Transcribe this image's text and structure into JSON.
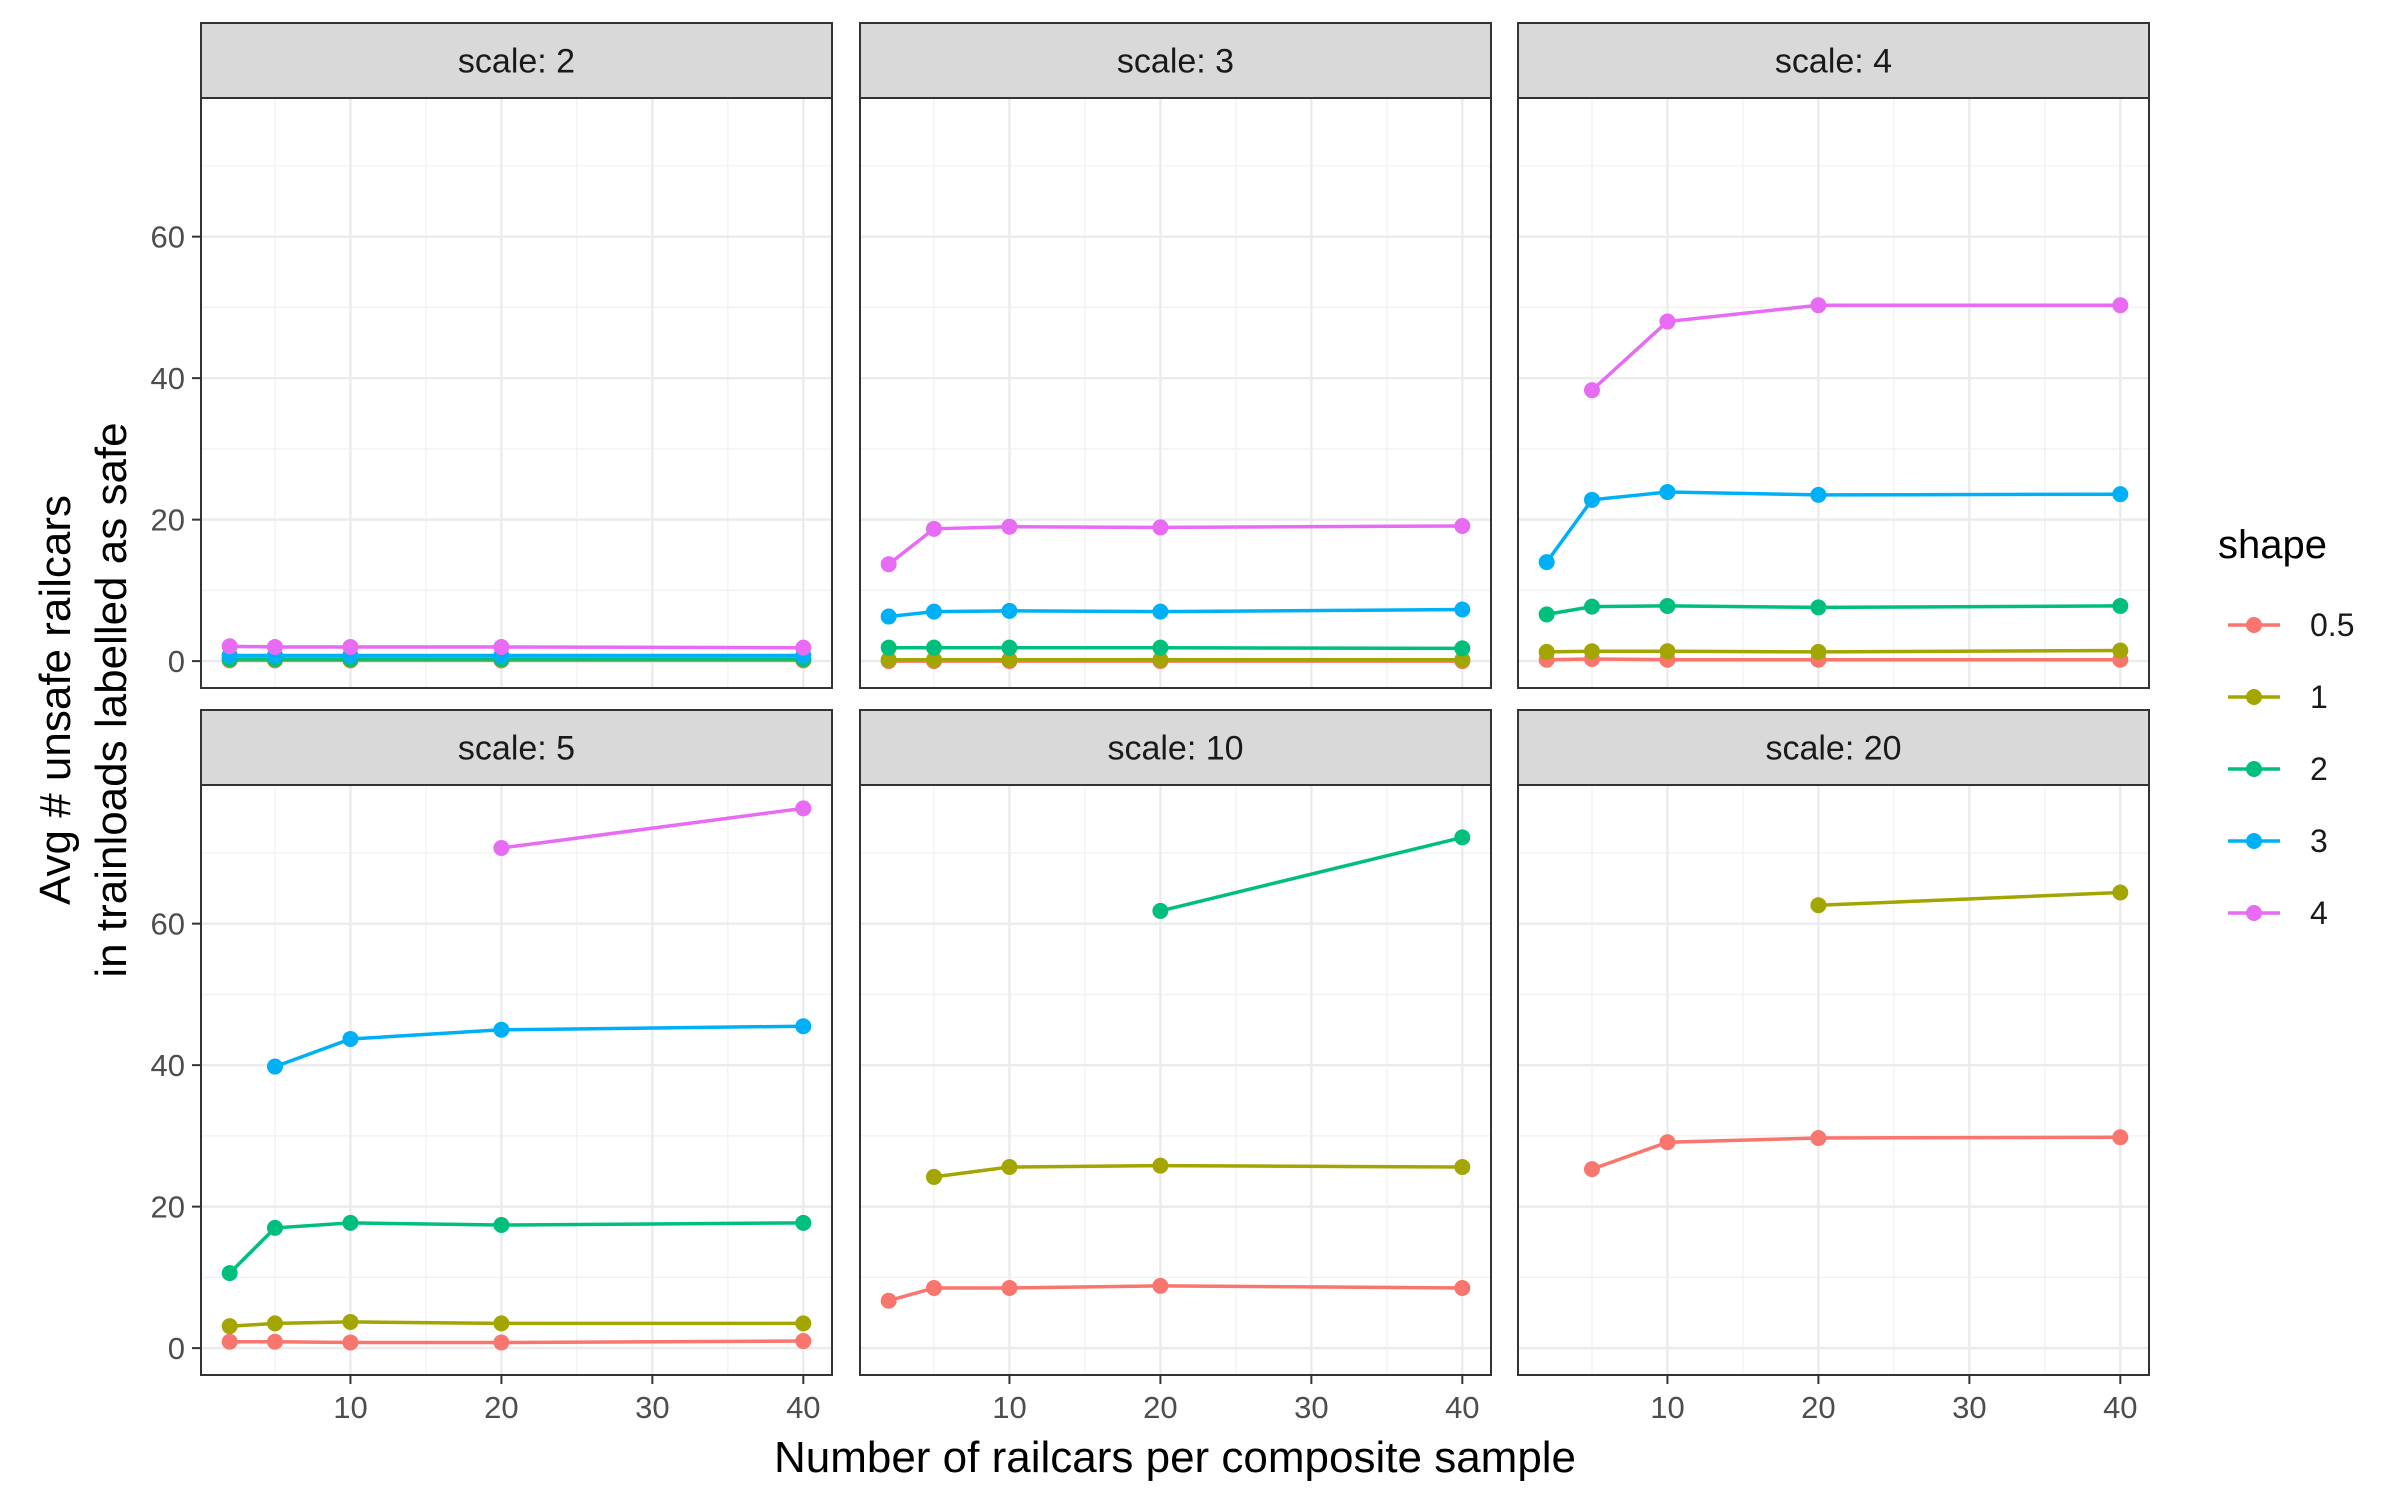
{
  "chart_data": {
    "type": "line",
    "xlabel": "Number of railcars per composite sample",
    "ylabel_lines": [
      "Avg # unsafe railcars",
      "in trainloads labelled as safe"
    ],
    "facet_prefix": "scale: ",
    "x_ticks": [
      10,
      20,
      30,
      40
    ],
    "y_ticks": [
      0,
      20,
      40,
      60
    ],
    "xlim": [
      0.1,
      41.9
    ],
    "ylim": [
      -3.8,
      79.6
    ],
    "grid": true,
    "legend": {
      "title": "shape",
      "position": "right",
      "entries": [
        {
          "label": "0.5",
          "color": "#F8766D"
        },
        {
          "label": "1",
          "color": "#A3A500"
        },
        {
          "label": "2",
          "color": "#00BF7D"
        },
        {
          "label": "3",
          "color": "#00B0F6"
        },
        {
          "label": "4",
          "color": "#E76BF3"
        }
      ]
    },
    "panels": [
      {
        "scale": "2",
        "series": [
          {
            "name": "0.5",
            "x": [
              2,
              5,
              10,
              20,
              40
            ],
            "y": [
              0.1,
              0.1,
              0.1,
              0.1,
              0.1
            ]
          },
          {
            "name": "1",
            "x": [
              2,
              5,
              10,
              20,
              40
            ],
            "y": [
              0.2,
              0.2,
              0.2,
              0.2,
              0.2
            ]
          },
          {
            "name": "2",
            "x": [
              2,
              5,
              10,
              20,
              40
            ],
            "y": [
              0.3,
              0.3,
              0.3,
              0.3,
              0.3
            ]
          },
          {
            "name": "3",
            "x": [
              2,
              5,
              10,
              20,
              40
            ],
            "y": [
              0.8,
              0.8,
              0.8,
              0.8,
              0.8
            ]
          },
          {
            "name": "4",
            "x": [
              2,
              5,
              10,
              20,
              40
            ],
            "y": [
              2.1,
              2.0,
              2.0,
              2.0,
              1.9
            ]
          }
        ]
      },
      {
        "scale": "3",
        "series": [
          {
            "name": "0.5",
            "x": [
              2,
              5,
              10,
              20,
              40
            ],
            "y": [
              0.0,
              0.0,
              0.0,
              0.0,
              0.0
            ]
          },
          {
            "name": "1",
            "x": [
              2,
              5,
              10,
              20,
              40
            ],
            "y": [
              0.2,
              0.2,
              0.2,
              0.2,
              0.2
            ]
          },
          {
            "name": "2",
            "x": [
              2,
              5,
              10,
              20,
              40
            ],
            "y": [
              1.9,
              1.9,
              1.9,
              1.9,
              1.8
            ]
          },
          {
            "name": "3",
            "x": [
              2,
              5,
              10,
              20,
              40
            ],
            "y": [
              6.3,
              7.0,
              7.1,
              7.0,
              7.3
            ]
          },
          {
            "name": "4",
            "x": [
              2,
              5,
              10,
              20,
              40
            ],
            "y": [
              13.7,
              18.7,
              19.0,
              18.9,
              19.1
            ]
          }
        ]
      },
      {
        "scale": "4",
        "series": [
          {
            "name": "0.5",
            "x": [
              2,
              5,
              10,
              20,
              40
            ],
            "y": [
              0.2,
              0.3,
              0.2,
              0.2,
              0.2
            ]
          },
          {
            "name": "1",
            "x": [
              2,
              5,
              10,
              20,
              40
            ],
            "y": [
              1.3,
              1.4,
              1.4,
              1.3,
              1.5
            ]
          },
          {
            "name": "2",
            "x": [
              2,
              5,
              10,
              20,
              40
            ],
            "y": [
              6.6,
              7.7,
              7.8,
              7.6,
              7.8
            ]
          },
          {
            "name": "3",
            "x": [
              2,
              5,
              10,
              20,
              40
            ],
            "y": [
              14.0,
              22.8,
              23.9,
              23.5,
              23.6
            ]
          },
          {
            "name": "4",
            "x": [
              5,
              10,
              20,
              40
            ],
            "y": [
              38.3,
              48.0,
              50.3,
              50.3
            ]
          }
        ]
      },
      {
        "scale": "5",
        "series": [
          {
            "name": "0.5",
            "x": [
              2,
              5,
              10,
              20,
              40
            ],
            "y": [
              0.9,
              0.9,
              0.8,
              0.8,
              1.0
            ]
          },
          {
            "name": "1",
            "x": [
              2,
              5,
              10,
              20,
              40
            ],
            "y": [
              3.1,
              3.5,
              3.7,
              3.5,
              3.5
            ]
          },
          {
            "name": "2",
            "x": [
              2,
              5,
              10,
              20,
              40
            ],
            "y": [
              10.6,
              17.0,
              17.7,
              17.4,
              17.7
            ]
          },
          {
            "name": "3",
            "x": [
              5,
              10,
              20,
              40
            ],
            "y": [
              39.8,
              43.7,
              45.0,
              45.5
            ]
          },
          {
            "name": "4",
            "x": [
              20,
              40
            ],
            "y": [
              70.7,
              76.3
            ]
          }
        ]
      },
      {
        "scale": "10",
        "series": [
          {
            "name": "0.5",
            "x": [
              2,
              5,
              10,
              20,
              40
            ],
            "y": [
              6.7,
              8.5,
              8.5,
              8.8,
              8.5
            ]
          },
          {
            "name": "1",
            "x": [
              5,
              10,
              20,
              40
            ],
            "y": [
              24.2,
              25.6,
              25.8,
              25.6
            ]
          },
          {
            "name": "2",
            "x": [
              20,
              40
            ],
            "y": [
              61.8,
              72.2
            ]
          }
        ]
      },
      {
        "scale": "20",
        "series": [
          {
            "name": "0.5",
            "x": [
              5,
              10,
              20,
              40
            ],
            "y": [
              25.3,
              29.1,
              29.7,
              29.8
            ]
          },
          {
            "name": "1",
            "x": [
              20,
              40
            ],
            "y": [
              62.6,
              64.4
            ]
          }
        ]
      }
    ]
  }
}
